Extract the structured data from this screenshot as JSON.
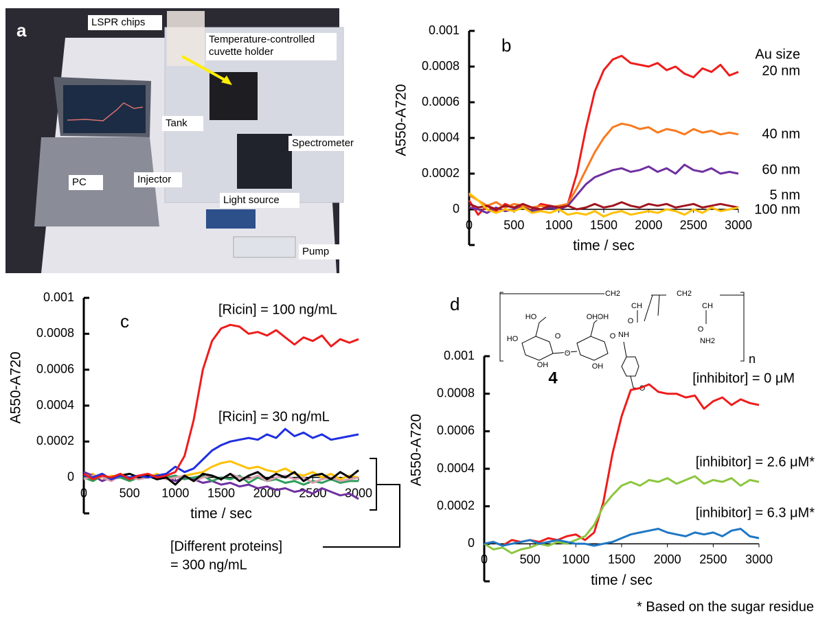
{
  "panel_a": {
    "letter": "a",
    "labels": [
      "LSPR chips",
      "Tank",
      "Spectrometer",
      "PC",
      "Injector",
      "Light source",
      "Pump"
    ],
    "holder_label": [
      "Temperature-controlled",
      "cuvette holder"
    ]
  },
  "structure": {
    "compound": "4",
    "repeat": "n",
    "atoms": [
      "CH2",
      "CH",
      "O",
      "NH",
      "CH2",
      "CH",
      "O",
      "NH2",
      "HO",
      "HO",
      "OH",
      "O",
      "O",
      "OH",
      "OH",
      "O",
      "O",
      "OH"
    ]
  },
  "chart_data": [
    {
      "type": "line",
      "panel": "b",
      "xlabel": "time / sec",
      "ylabel": "A550-A720",
      "legend_title": "Au size",
      "x": [
        0,
        100,
        200,
        300,
        400,
        500,
        600,
        700,
        800,
        900,
        1000,
        1100,
        1200,
        1300,
        1400,
        1500,
        1600,
        1700,
        1800,
        1900,
        2000,
        2100,
        2200,
        2300,
        2400,
        2500,
        2600,
        2700,
        2800,
        2900,
        3000
      ],
      "xlim": [
        0,
        3000
      ],
      "xticks": [
        0,
        500,
        1000,
        1500,
        2000,
        2500,
        3000
      ],
      "ylim": [
        -0.0002,
        0.001
      ],
      "yticks": [
        0,
        0.0002,
        0.0004,
        0.0006,
        0.0008,
        0.001
      ],
      "series": [
        {
          "name": "20 nm",
          "color": "#ee1c1c",
          "values": [
            5e-05,
            -3e-05,
            2e-05,
            -1e-05,
            3e-05,
            1e-05,
            2e-05,
            -1e-05,
            3e-05,
            2e-05,
            1e-05,
            3e-05,
            0.0002,
            0.00045,
            0.00066,
            0.00078,
            0.00084,
            0.00086,
            0.00082,
            0.00081,
            0.0008,
            0.00082,
            0.00078,
            0.0008,
            0.00076,
            0.00074,
            0.00079,
            0.00077,
            0.00081,
            0.00075,
            0.00077
          ]
        },
        {
          "name": "40 nm",
          "color": "#f97a1f",
          "values": [
            8e-05,
            5e-05,
            2e-05,
            4e-05,
            1e-05,
            3e-05,
            2e-05,
            1e-05,
            2e-05,
            1e-05,
            2e-05,
            3e-05,
            0.00012,
            0.00022,
            0.00032,
            0.0004,
            0.00046,
            0.00048,
            0.00047,
            0.00045,
            0.00046,
            0.00043,
            0.00045,
            0.00044,
            0.00042,
            0.00045,
            0.00043,
            0.00044,
            0.00042,
            0.00043,
            0.00042
          ]
        },
        {
          "name": "60 nm",
          "color": "#7030a0",
          "values": [
            1e-05,
            0,
            -2e-05,
            1e-05,
            -1e-05,
            0,
            1e-05,
            -1e-05,
            0,
            1e-05,
            0,
            2e-05,
            8e-05,
            0.00014,
            0.00018,
            0.0002,
            0.00022,
            0.00023,
            0.00021,
            0.00022,
            0.00024,
            0.00021,
            0.00023,
            0.0002,
            0.00025,
            0.00022,
            0.00021,
            0.00023,
            0.0002,
            0.00021,
            0.0002
          ]
        },
        {
          "name": "5 nm",
          "color": "#a0141e",
          "values": [
            3e-05,
            1e-05,
            2e-05,
            0,
            2e-05,
            1e-05,
            3e-05,
            1e-05,
            0,
            2e-05,
            1e-05,
            2e-05,
            0,
            1e-05,
            3e-05,
            1e-05,
            2e-05,
            4e-05,
            2e-05,
            1e-05,
            3e-05,
            2e-05,
            3e-05,
            1e-05,
            2e-05,
            3e-05,
            1e-05,
            2e-05,
            3e-05,
            2e-05,
            1e-05
          ]
        },
        {
          "name": "100 nm",
          "color": "#ffc000",
          "values": [
            9e-05,
            5e-05,
            0,
            -2e-05,
            0,
            -1e-05,
            1e-05,
            -2e-05,
            -1e-05,
            -2e-05,
            0,
            -3e-05,
            -2e-05,
            -3e-05,
            -1e-05,
            -4e-05,
            -2e-05,
            -1e-05,
            -3e-05,
            -2e-05,
            -1e-05,
            -2e-05,
            0,
            -1e-05,
            -3e-05,
            0,
            -2e-05,
            1e-05,
            -1e-05,
            0,
            1e-05
          ]
        }
      ]
    },
    {
      "type": "line",
      "panel": "c",
      "xlabel": "time / sec",
      "ylabel": "A550-A720",
      "annotation": [
        "[Different proteins]",
        "= 300 ng/mL"
      ],
      "x": [
        0,
        100,
        200,
        300,
        400,
        500,
        600,
        700,
        800,
        900,
        1000,
        1100,
        1200,
        1300,
        1400,
        1500,
        1600,
        1700,
        1800,
        1900,
        2000,
        2100,
        2200,
        2300,
        2400,
        2500,
        2600,
        2700,
        2800,
        2900,
        3000
      ],
      "xlim": [
        0,
        3000
      ],
      "xticks": [
        0,
        500,
        1000,
        1500,
        2000,
        2500,
        3000
      ],
      "ylim": [
        -0.0002,
        0.001
      ],
      "yticks": [
        0,
        0.0002,
        0.0004,
        0.0006,
        0.0008,
        0.001
      ],
      "series": [
        {
          "color": "#ffc000",
          "values": [
            0,
            2e-05,
            -2e-05,
            1e-05,
            0,
            -1e-05,
            1e-05,
            0,
            2e-05,
            -1e-05,
            0,
            1e-05,
            2e-05,
            3e-05,
            6e-05,
            8e-05,
            9e-05,
            7e-05,
            5e-05,
            6e-05,
            4e-05,
            3e-05,
            5e-05,
            2e-05,
            1e-05,
            3e-05,
            0,
            2e-05,
            -1e-05,
            1e-05,
            0
          ]
        },
        {
          "color": "#7030a0",
          "values": [
            3e-05,
            1e-05,
            -2e-05,
            0,
            1e-05,
            -1e-05,
            0,
            1e-05,
            -1e-05,
            0,
            -2e-05,
            0,
            -1e-05,
            -3e-05,
            -2e-05,
            -4e-05,
            -3e-05,
            -5e-05,
            -4e-05,
            -6e-05,
            -5e-05,
            -7e-05,
            -6e-05,
            -8e-05,
            -7e-05,
            -9e-05,
            -6e-05,
            -8e-05,
            -0.0001,
            -9e-05,
            -0.00012
          ]
        },
        {
          "color": "#2e9e5a",
          "values": [
            0,
            -2e-05,
            1e-05,
            -1e-05,
            0,
            -2e-05,
            0,
            1e-05,
            -1e-05,
            0,
            1e-05,
            -1e-05,
            0,
            1e-05,
            -2e-05,
            0,
            -1e-05,
            1e-05,
            -3e-05,
            0,
            -2e-05,
            -1e-05,
            -3e-05,
            -2e-05,
            -4e-05,
            -2e-05,
            -3e-05,
            -1e-05,
            -3e-05,
            -2e-05,
            -2e-05
          ]
        },
        {
          "color": "#d9a0b0",
          "values": [
            -1e-05,
            1e-05,
            0,
            -2e-05,
            1e-05,
            0,
            -1e-05,
            0,
            1e-05,
            -1e-05,
            0,
            1e-05,
            -2e-05,
            0,
            1e-05,
            -1e-05,
            2e-05,
            0,
            -1e-05,
            1e-05,
            -2e-05,
            0,
            1e-05,
            -1e-05,
            0,
            -3e-05,
            -1e-05,
            0,
            -2e-05,
            -1e-05,
            0
          ]
        },
        {
          "color": "#000000",
          "values": [
            1e-05,
            0,
            2e-05,
            -1e-05,
            1e-05,
            2e-05,
            0,
            1e-05,
            -1e-05,
            0,
            -4e-05,
            1e-05,
            -2e-05,
            2e-05,
            1e-05,
            -1e-05,
            2e-05,
            -2e-05,
            1e-05,
            3e-05,
            -1e-05,
            2e-05,
            0,
            3e-05,
            -2e-05,
            1e-05,
            2e-05,
            -1e-05,
            3e-05,
            0,
            4e-05
          ]
        },
        {
          "name": "[Ricin] = 30 ng/mL",
          "color": "#1f2fe0",
          "values": [
            1e-05,
            0,
            2e-05,
            -1e-05,
            1e-05,
            0,
            1e-05,
            0,
            1e-05,
            2e-05,
            6e-05,
            3e-05,
            5e-05,
            0.0001,
            0.00015,
            0.00018,
            0.0002,
            0.00021,
            0.00022,
            0.00021,
            0.00024,
            0.00022,
            0.00027,
            0.00023,
            0.00025,
            0.00022,
            0.00024,
            0.00021,
            0.00022,
            0.00023,
            0.00024
          ]
        },
        {
          "name": "[Ricin] = 100 ng/mL",
          "color": "#ee1c1c",
          "values": [
            2e-05,
            -1e-05,
            1e-05,
            0,
            2e-05,
            -1e-05,
            1e-05,
            2e-05,
            0,
            1e-05,
            3e-05,
            0.00012,
            0.00032,
            0.0006,
            0.00076,
            0.00083,
            0.00085,
            0.00084,
            0.0008,
            0.00081,
            0.00079,
            0.00082,
            0.00078,
            0.00074,
            0.00078,
            0.00076,
            0.00079,
            0.00073,
            0.00077,
            0.00075,
            0.00077
          ]
        }
      ]
    },
    {
      "type": "line",
      "panel": "d",
      "xlabel": "time / sec",
      "ylabel": "A550-A720",
      "footnote": "* Based on the sugar residue",
      "x": [
        0,
        100,
        200,
        300,
        400,
        500,
        600,
        700,
        800,
        900,
        1000,
        1100,
        1200,
        1300,
        1400,
        1500,
        1600,
        1700,
        1800,
        1900,
        2000,
        2100,
        2200,
        2300,
        2400,
        2500,
        2600,
        2700,
        2800,
        2900,
        3000
      ],
      "xlim": [
        0,
        3000
      ],
      "xticks": [
        0,
        500,
        1000,
        1500,
        2000,
        2500,
        3000
      ],
      "ylim": [
        -0.0002,
        0.001
      ],
      "yticks": [
        0,
        0.0002,
        0.0004,
        0.0006,
        0.0008,
        0.001
      ],
      "series": [
        {
          "name": "[inhibitor] = 0 μM",
          "color": "#ee1c1c",
          "values": [
            0,
            1e-05,
            -1e-05,
            2e-05,
            1e-05,
            2e-05,
            1e-05,
            3e-05,
            2e-05,
            4e-05,
            5e-05,
            2e-05,
            6e-05,
            0.00022,
            0.00048,
            0.00068,
            0.00082,
            0.00083,
            0.00085,
            0.00081,
            0.0008,
            0.0008,
            0.00078,
            0.00079,
            0.00072,
            0.00076,
            0.00078,
            0.00074,
            0.00077,
            0.00075,
            0.00074
          ]
        },
        {
          "name": "[inhibitor] = 2.6 μM*",
          "color": "#8cc63f",
          "values": [
            0,
            -3e-05,
            -2e-05,
            -5e-05,
            -3e-05,
            -2e-05,
            0,
            -1e-05,
            1e-05,
            0,
            2e-05,
            4e-05,
            0.0001,
            0.0002,
            0.00026,
            0.00031,
            0.00033,
            0.00031,
            0.00034,
            0.00033,
            0.00035,
            0.00032,
            0.00034,
            0.00036,
            0.00032,
            0.00034,
            0.00033,
            0.00035,
            0.00031,
            0.00034,
            0.00033
          ]
        },
        {
          "name": "[inhibitor] = 6.3 μM*",
          "color": "#1f77c4",
          "values": [
            0,
            1e-05,
            -1e-05,
            0,
            1e-05,
            2e-05,
            0,
            1e-05,
            2e-05,
            1e-05,
            0,
            0,
            -1e-05,
            0,
            1e-05,
            3e-05,
            5e-05,
            6e-05,
            7e-05,
            8e-05,
            6e-05,
            5e-05,
            4e-05,
            6e-05,
            5e-05,
            6e-05,
            4e-05,
            7e-05,
            8e-05,
            4e-05,
            3e-05
          ]
        }
      ]
    }
  ]
}
